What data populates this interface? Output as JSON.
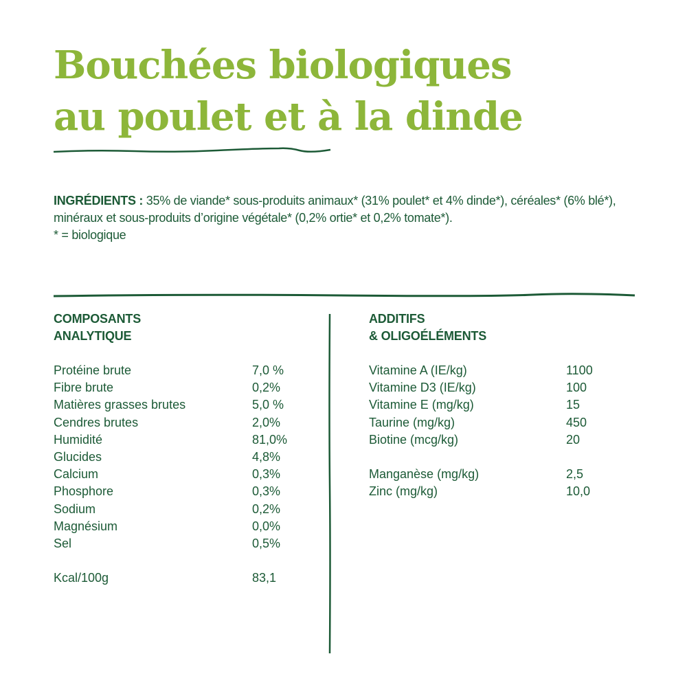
{
  "title": {
    "line1": "Bouchées biologiques",
    "line2": "au poulet et à la dinde"
  },
  "ingredients": {
    "label": "INGRÉDIENTS :",
    "text": " 35% de viande* sous-produits animaux* (31% poulet* et 4% dinde*), céréales* (6% blé*), minéraux et sous-produits d’origine végétale* (0,2% ortie* et 0,2% tomate*).",
    "note": "* = biologique"
  },
  "analytic": {
    "heading1": "COMPOSANTS",
    "heading2": "ANALYTIQUE",
    "rows": [
      {
        "name": "Protéine brute",
        "value": "7,0 %"
      },
      {
        "name": "Fibre brute",
        "value": "0,2%"
      },
      {
        "name": "Matières grasses brutes",
        "value": "5,0 %"
      },
      {
        "name": "Cendres brutes",
        "value": "2,0%"
      },
      {
        "name": "Humidité",
        "value": "81,0%"
      },
      {
        "name": "Glucides",
        "value": "4,8%"
      },
      {
        "name": "Calcium",
        "value": "0,3%"
      },
      {
        "name": "Phosphore",
        "value": "0,3%"
      },
      {
        "name": "Sodium",
        "value": "0,2%"
      },
      {
        "name": "Magnésium",
        "value": "0,0%"
      },
      {
        "name": "Sel",
        "value": "0,5%"
      }
    ],
    "kcal": {
      "name": "Kcal/100g",
      "value": "83,1"
    }
  },
  "additives": {
    "heading1": "ADDITIFS",
    "heading2": "& OLIGOÉLÉMENTS",
    "vitamins": [
      {
        "name": "Vitamine A (IE/kg)",
        "value": "1100"
      },
      {
        "name": "Vitamine D3 (IE/kg)",
        "value": "100"
      },
      {
        "name": "Vitamine E (mg/kg)",
        "value": "15"
      },
      {
        "name": "Taurine (mg/kg)",
        "value": "450"
      },
      {
        "name": "Biotine (mcg/kg)",
        "value": "20"
      }
    ],
    "minerals": [
      {
        "name": "Manganèse (mg/kg)",
        "value": "2,5"
      },
      {
        "name": "Zinc (mg/kg)",
        "value": "10,0"
      }
    ]
  },
  "colors": {
    "title": "#8db63a",
    "text": "#1c5a36"
  }
}
